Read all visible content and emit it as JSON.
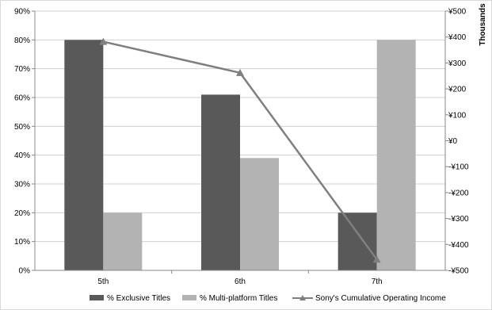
{
  "chart_data": {
    "type": "bar",
    "categories": [
      "5th",
      "6th",
      "7th"
    ],
    "series": [
      {
        "name": "% Exclusive Titles",
        "type": "bar",
        "axis": "left",
        "color": "#595959",
        "values": [
          80,
          61,
          20
        ]
      },
      {
        "name": "% Multi-platform Titles",
        "type": "bar",
        "axis": "left",
        "color": "#b3b3b3",
        "values": [
          20,
          39,
          80
        ]
      },
      {
        "name": "Sony's Cumulative Operating Income",
        "type": "line",
        "axis": "right",
        "color": "#7f7f7f",
        "marker": "triangle",
        "values": [
          382,
          262,
          -458
        ]
      }
    ],
    "y_left": {
      "min": 0,
      "max": 90,
      "step": 10,
      "tick_labels": [
        "0%",
        "10%",
        "20%",
        "30%",
        "40%",
        "50%",
        "60%",
        "70%",
        "80%",
        "90%"
      ]
    },
    "y_right": {
      "min": -500,
      "max": 500,
      "step": 100,
      "label": "Thousands",
      "tick_labels": [
        "-¥500",
        "-¥400",
        "-¥300",
        "-¥200",
        "-¥100",
        "¥0",
        "¥100",
        "¥200",
        "¥300",
        "¥400",
        "¥500"
      ]
    },
    "grid": true,
    "legend": "bottom"
  }
}
